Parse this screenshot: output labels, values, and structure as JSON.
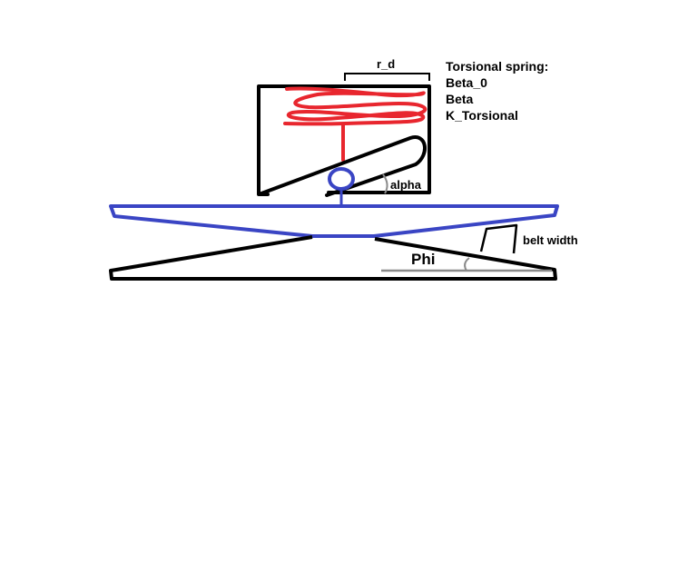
{
  "labels": {
    "r_d": "r_d",
    "torsional_heading": "Torsional spring:",
    "beta_0": "Beta_0",
    "beta": "Beta",
    "k_torsional": "K_Torsional",
    "alpha": "alpha",
    "belt_width": "belt width",
    "phi": "Phi"
  },
  "colors": {
    "outline": "#000000",
    "spring": "#e8262e",
    "platform": "#3a45c4",
    "angle_guide": "#8a8a8a",
    "background": "#ffffff"
  }
}
